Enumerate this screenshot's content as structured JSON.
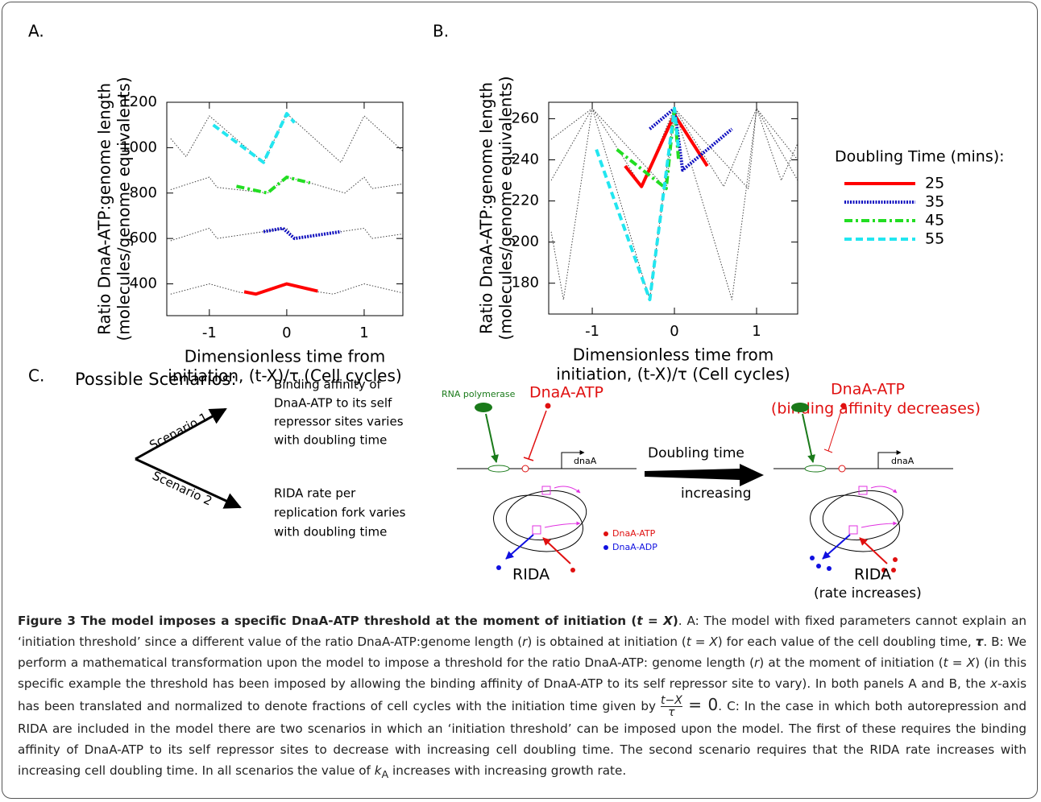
{
  "chart_data": [
    {
      "type": "line",
      "panel": "A.",
      "y_label": [
        "Ratio DnaA-ATP:genome length",
        "(molecules/genome equivalents)"
      ],
      "x_label": [
        "Dimensionless time from",
        "initiation, (t-X)/τ (Cell cycles)"
      ],
      "xlim": [
        -1.55,
        1.5
      ],
      "xticks": [
        -1,
        0,
        1
      ],
      "ylim": [
        260,
        1200
      ],
      "yticks": [
        400,
        600,
        800,
        1000,
        1200
      ],
      "series": [
        {
          "color": "#444444",
          "style": "dotted",
          "x": [
            -1.5,
            -1,
            -0.6,
            -0.4,
            0,
            0.4,
            0.6,
            1,
            1.5
          ],
          "values": [
            355,
            400,
            362,
            355,
            400,
            365,
            355,
            400,
            360
          ]
        },
        {
          "color": "#444444",
          "style": "dotted",
          "x": [
            -1.5,
            -1,
            -0.9,
            0,
            0.1,
            1,
            1.1,
            1.5
          ],
          "values": [
            590,
            645,
            600,
            645,
            600,
            645,
            600,
            620
          ]
        },
        {
          "color": "#444444",
          "style": "dotted",
          "x": [
            -1.5,
            -1,
            -0.9,
            -0.25,
            0,
            0.3,
            0.75,
            1,
            1.1,
            1.5
          ],
          "values": [
            815,
            870,
            825,
            800,
            870,
            845,
            800,
            870,
            820,
            840
          ]
        },
        {
          "color": "#444444",
          "style": "dotted",
          "x": [
            -1.5,
            -1.3,
            -1,
            -0.3,
            0,
            0.7,
            1,
            1.5
          ],
          "values": [
            1040,
            960,
            1140,
            935,
            1150,
            935,
            1140,
            985
          ]
        },
        {
          "color": "#ff0000",
          "style": "solid",
          "x": [
            -0.55,
            -0.4,
            0,
            0.4
          ],
          "values": [
            365,
            355,
            400,
            368
          ]
        },
        {
          "color": "#1010c0",
          "style": "blue-dotted",
          "x": [
            -0.3,
            -0.05,
            0.1,
            0.7
          ],
          "values": [
            630,
            645,
            600,
            630
          ]
        },
        {
          "color": "#22dd22",
          "style": "dashdot",
          "x": [
            -0.65,
            -0.25,
            0,
            0.3
          ],
          "values": [
            830,
            800,
            870,
            845
          ]
        },
        {
          "color": "#22e6f0",
          "style": "dashed",
          "x": [
            -0.95,
            -0.3,
            0,
            0.1
          ],
          "values": [
            1100,
            935,
            1150,
            1110
          ]
        }
      ]
    },
    {
      "type": "line",
      "panel": "B.",
      "y_label": [
        "Ratio DnaA-ATP:genome length",
        "(molecules/genome equivalents)"
      ],
      "x_label": [
        "Dimensionless time from",
        "initiation, (t-X)/τ (Cell cycles)"
      ],
      "xlim": [
        -1.53,
        1.5
      ],
      "xticks": [
        -1,
        0,
        1
      ],
      "ylim": [
        165,
        268
      ],
      "yticks": [
        180,
        200,
        220,
        240,
        260
      ],
      "legend": "right",
      "legend_title": "Doubling Time (mins):",
      "series": [
        {
          "color": "#444444",
          "style": "dotted",
          "x": [
            -1.5,
            -1.35,
            -1,
            -0.3,
            0,
            0.7,
            1,
            1.3,
            1.5
          ],
          "values": [
            205,
            172,
            265,
            172,
            265,
            172,
            265,
            230,
            248
          ]
        },
        {
          "color": "#444444",
          "style": "dotted",
          "x": [
            -1.5,
            -1,
            -0.4,
            0,
            0.6,
            1,
            1.5
          ],
          "values": [
            250,
            265,
            227,
            265,
            227,
            265,
            240
          ]
        },
        {
          "color": "#444444",
          "style": "dotted",
          "x": [
            -1.5,
            -1,
            -0.1,
            0,
            0.9,
            1,
            1.5
          ],
          "values": [
            230,
            265,
            226,
            265,
            226,
            265,
            230
          ]
        },
        {
          "name": "25",
          "color": "#ff0000",
          "style": "solid",
          "x": [
            -0.6,
            -0.4,
            0,
            0.4
          ],
          "values": [
            237,
            227,
            262,
            237
          ]
        },
        {
          "name": "35",
          "color": "#1010c0",
          "style": "blue-dotted",
          "x": [
            -0.3,
            0,
            0.1,
            0.7
          ],
          "values": [
            255,
            265,
            235,
            255
          ]
        },
        {
          "name": "45",
          "color": "#22dd22",
          "style": "dashdot",
          "x": [
            -0.7,
            -0.1,
            0,
            0.05
          ],
          "values": [
            245,
            226,
            265,
            240
          ]
        },
        {
          "name": "55",
          "color": "#22e6f0",
          "style": "dashed",
          "x": [
            -0.95,
            -0.3,
            0,
            0.05
          ],
          "values": [
            245,
            172,
            265,
            245
          ]
        }
      ]
    }
  ],
  "diagram": {
    "panel": "C.",
    "heading": "Possible Scenarios:",
    "scenario1": "Scenario 1",
    "scenario2": "Scenario 2",
    "scenario1_text": [
      "Binding affinity of",
      "DnaA-ATP to its self",
      "repressor sites varies",
      "with doubling time"
    ],
    "scenario2_text": [
      "RIDA rate per",
      "replication fork varies",
      "with doubling time"
    ],
    "polymerase": "RNA polymerase",
    "dnaa_atp": "DnaA-ATP",
    "gene": "dnaA",
    "legend_atp": "DnaA-ATP",
    "legend_adp": "DnaA-ADP",
    "rida": "RIDA",
    "arrow_top": "Doubling time",
    "arrow_bottom": "increasing",
    "right_dnaa_atp": "DnaA-ATP",
    "right_dnaa_note": "(binding affinity decreases)",
    "right_gene": "dnaA",
    "right_rida": "RIDA",
    "right_rida_note": "(rate increases)"
  },
  "caption": {
    "runs": [
      {
        "style": "bold",
        "text": "Figure 3 The model imposes a specific DnaA-ATP threshold at the moment of initiation ("
      },
      {
        "style": "bold-italic",
        "text": "t = X"
      },
      {
        "style": "bold",
        "text": ")"
      },
      {
        "style": "normal",
        "text": ". A: The model with fixed parameters cannot explain an ‘initiation threshold’ since a different value of the ratio DnaA-ATP:genome length ("
      },
      {
        "style": "italic",
        "text": "r"
      },
      {
        "style": "normal",
        "text": ") is obtained at initiation ("
      },
      {
        "style": "italic",
        "text": "t = X"
      },
      {
        "style": "normal",
        "text": ") for each value of the cell doubling time, "
      },
      {
        "style": "bold-italic",
        "text": "τ"
      },
      {
        "style": "normal",
        "text": ". B: We perform a mathematical transformation upon the model to impose a threshold for the ratio DnaA-ATP: genome length ("
      },
      {
        "style": "italic",
        "text": "r"
      },
      {
        "style": "normal",
        "text": ") at the moment of initiation ("
      },
      {
        "style": "italic",
        "text": "t = X"
      },
      {
        "style": "normal",
        "text": ") (in this specific example the threshold has been imposed by allowing the binding affinity of DnaA-ATP to its self repressor site to vary). In both panels A and B, the "
      },
      {
        "style": "italic",
        "text": "x"
      },
      {
        "style": "normal",
        "text": "-axis has been translated and normalized to denote fractions of cell cycles with the initiation time given by "
      },
      {
        "style": "frac",
        "num": "t−X",
        "den": "τ"
      },
      {
        "style": "eq",
        "text": " = 0"
      },
      {
        "style": "normal",
        "text": ". C: In the case in which both autorepression and RIDA are included in the model there are two scenarios in which an ‘initiation threshold’ can be imposed upon the model. The first of these requires the binding affinity of DnaA-ATP to its self repressor sites to decrease with increasing cell doubling time. The second scenario requires that the RIDA rate increases with increasing cell doubling time. In all scenarios the value of "
      },
      {
        "style": "italic",
        "text": "k"
      },
      {
        "style": "sub",
        "text": "A"
      },
      {
        "style": "normal",
        "text": " increases with increasing growth rate."
      }
    ]
  }
}
